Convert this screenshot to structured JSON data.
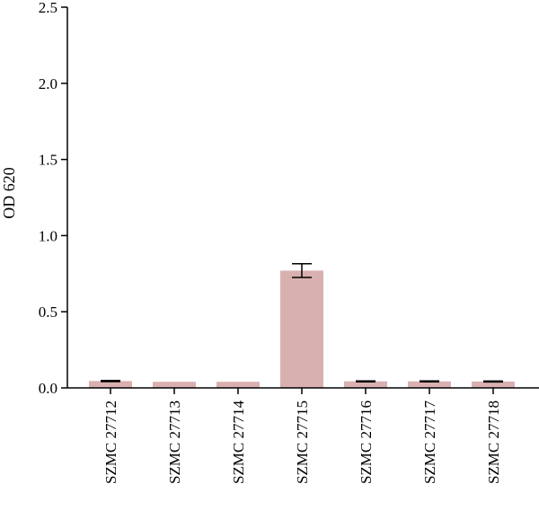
{
  "chart_data": {
    "type": "bar",
    "title": "",
    "xlabel": "",
    "ylabel": "OD 620",
    "ylim": [
      0,
      2.5
    ],
    "yticks": [
      0.0,
      0.5,
      1.0,
      1.5,
      2.0,
      2.5
    ],
    "ytick_labels": [
      "0.0",
      "0.5",
      "1.0",
      "1.5",
      "2.0",
      "2.5"
    ],
    "categories": [
      "SZMC 27712",
      "SZMC 27713",
      "SZMC 27714",
      "SZMC 27715",
      "SZMC 27716",
      "SZMC 27717",
      "SZMC 27718"
    ],
    "values": [
      0.045,
      0.04,
      0.04,
      0.77,
      0.043,
      0.043,
      0.042
    ],
    "errors": [
      0.004,
      0.0,
      0.0,
      0.045,
      0.003,
      0.003,
      0.003
    ],
    "bar_color": "#d9b0b0",
    "grid": false,
    "legend": "none"
  }
}
